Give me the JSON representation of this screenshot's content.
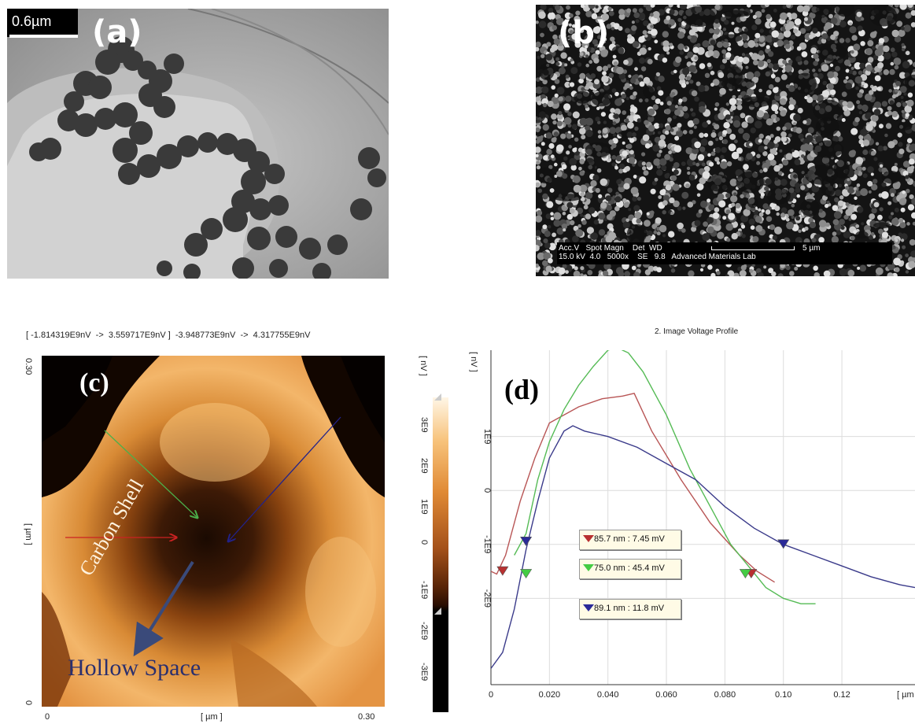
{
  "panel_a": {
    "label": "(a)",
    "scalebar": "0.6µm"
  },
  "panel_b": {
    "label": "(b)",
    "info_header": "Acc.V   Spot Magn    Det  WD",
    "info_values": "15.0 kV  4.0   5000x    SE   9.8   Advanced Materials Lab",
    "scale": "5 µm"
  },
  "panel_c": {
    "label": "(c)",
    "range_text": "[ -1.814319E9nV  ->  3.559717E9nV ]  -3.948773E9nV  ->  4.317755E9nV",
    "annot_shell": "Carbon Shell",
    "annot_hollow": "Hollow Space",
    "y_tick_top": "0.30",
    "y_tick_bottom": "0",
    "y_unit": "[ µm ]",
    "x_tick_left": "0",
    "x_tick_right": "0.30",
    "x_unit": "[ µm ]",
    "colorbar_unit": "[ nV ]",
    "colorbar_ticks": [
      "3E9",
      "2E9",
      "1E9",
      "0",
      "-1E9",
      "-2E9",
      "-3E9"
    ]
  },
  "chart_data": {
    "type": "line",
    "title": "2. Image Voltage Profile",
    "panel_label": "(d)",
    "y_unit": "[ nV ]",
    "x_unit": "[ µm ]",
    "xlim": [
      0,
      0.145
    ],
    "ylim": [
      -3.6,
      2.6
    ],
    "x_ticks": [
      0,
      0.02,
      0.04,
      0.06,
      0.08,
      0.1,
      0.12
    ],
    "x_tick_labels": [
      "0",
      "0.020",
      "0.040",
      "0.060",
      "0.080",
      "0.10",
      "0.12"
    ],
    "y_ticks": [
      1,
      0,
      -1,
      -2
    ],
    "y_tick_labels": [
      "1E9",
      "0",
      "-1E9",
      "-2E9"
    ],
    "grid": true,
    "series": [
      {
        "color": "#b85555",
        "x": [
          0,
          0.002,
          0.005,
          0.01,
          0.015,
          0.02,
          0.03,
          0.038,
          0.045,
          0.049,
          0.055,
          0.065,
          0.075,
          0.085,
          0.091,
          0.097
        ],
        "y": [
          -1.5,
          -1.55,
          -1.2,
          -0.2,
          0.6,
          1.25,
          1.55,
          1.7,
          1.75,
          1.8,
          1.1,
          0.2,
          -0.6,
          -1.2,
          -1.5,
          -1.7
        ]
      },
      {
        "color": "#55bb55",
        "x": [
          0.008,
          0.012,
          0.016,
          0.02,
          0.025,
          0.03,
          0.035,
          0.04,
          0.043,
          0.047,
          0.052,
          0.06,
          0.068,
          0.076,
          0.082,
          0.088,
          0.094,
          0.1,
          0.106,
          0.111
        ],
        "y": [
          -1.2,
          -0.8,
          0.2,
          0.9,
          1.5,
          1.95,
          2.3,
          2.6,
          2.65,
          2.55,
          2.2,
          1.4,
          0.4,
          -0.4,
          -1.0,
          -1.4,
          -1.8,
          -2.0,
          -2.1,
          -2.1
        ]
      },
      {
        "color": "#3a3a8a",
        "x": [
          0,
          0.004,
          0.008,
          0.012,
          0.016,
          0.02,
          0.025,
          0.028,
          0.032,
          0.04,
          0.05,
          0.06,
          0.07,
          0.08,
          0.09,
          0.1,
          0.11,
          0.12,
          0.13,
          0.14,
          0.145
        ],
        "y": [
          -3.3,
          -3.0,
          -2.2,
          -1.1,
          -0.2,
          0.6,
          1.1,
          1.2,
          1.1,
          1.0,
          0.8,
          0.5,
          0.2,
          -0.3,
          -0.7,
          -1.0,
          -1.2,
          -1.4,
          -1.6,
          -1.75,
          -1.8
        ]
      }
    ],
    "markers": [
      {
        "series": 0,
        "x": [
          0.004,
          0.089
        ],
        "y": [
          -1.5,
          -1.55
        ],
        "color": "#b83030"
      },
      {
        "series": 1,
        "x": [
          0.012,
          0.087
        ],
        "y": [
          -1.55,
          -1.55
        ],
        "color": "#44cc44"
      },
      {
        "series": 2,
        "x": [
          0.012,
          0.1
        ],
        "y": [
          -0.95,
          -1.0
        ],
        "color": "#2a2a99"
      }
    ],
    "legend": [
      {
        "text": "85.7 nm : 7.45 mV",
        "color": "#b83030"
      },
      {
        "text": "75.0 nm : 45.4 mV",
        "color": "#44cc44"
      },
      {
        "text": "89.1 nm : 11.8 mV",
        "color": "#2a2a99"
      }
    ]
  }
}
